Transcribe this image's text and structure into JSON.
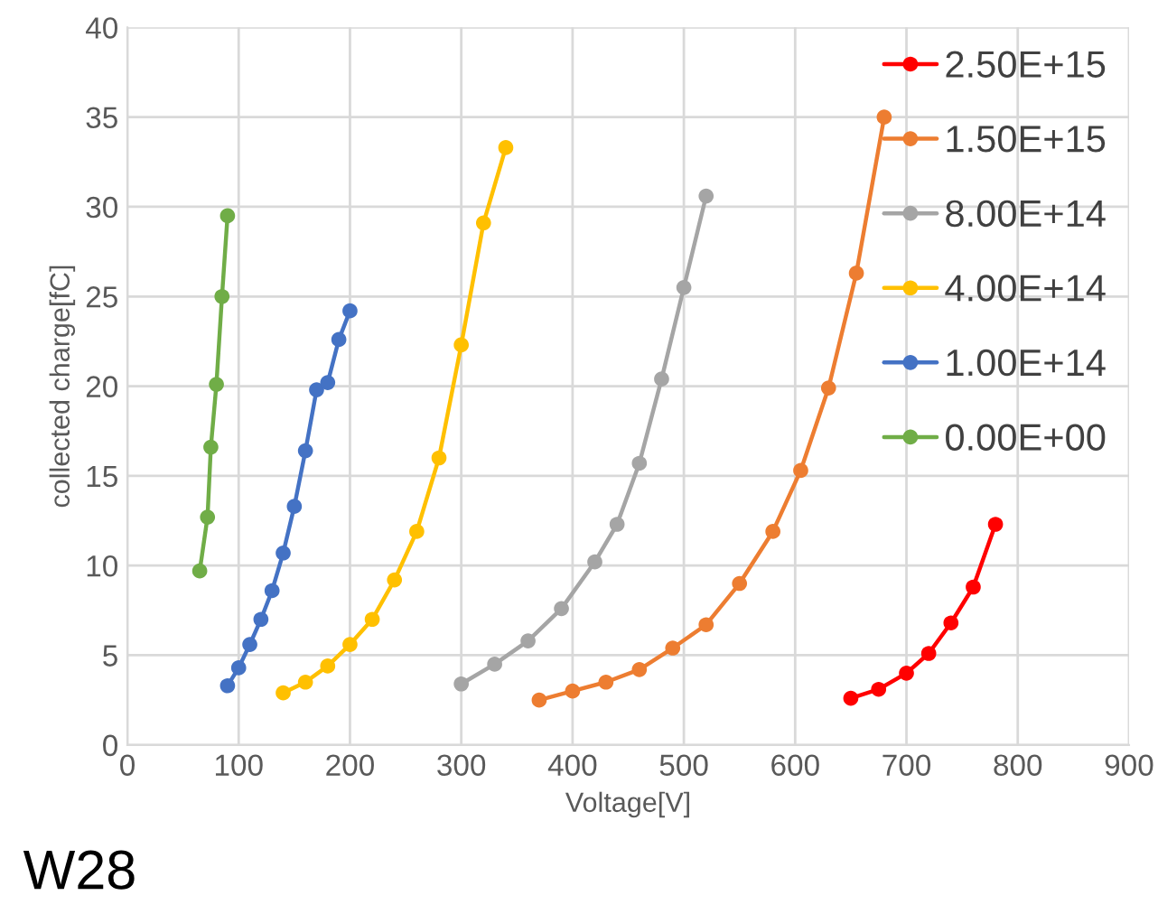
{
  "chart_data": {
    "type": "line",
    "xlabel": "Voltage[V]",
    "ylabel": "collected charge[fC]",
    "annotations": [
      "W28"
    ],
    "xlim": [
      0,
      900
    ],
    "xticks": [
      0,
      100,
      200,
      300,
      400,
      500,
      600,
      700,
      800,
      900
    ],
    "ylim": [
      0,
      40
    ],
    "yticks": [
      0,
      5,
      10,
      15,
      20,
      25,
      30,
      35,
      40
    ],
    "grid": true,
    "legend": "top right",
    "marker": "circle",
    "line_style": "solid",
    "series": [
      {
        "name": "2.50E+15",
        "color": "#ff0000",
        "x": [
          650,
          675,
          700,
          720,
          740,
          760,
          780
        ],
        "values": [
          2.6,
          3.1,
          4.0,
          5.1,
          6.8,
          8.8,
          12.3
        ]
      },
      {
        "name": "1.50E+15",
        "color": "#ed7d31",
        "x": [
          370,
          400,
          430,
          460,
          490,
          520,
          550,
          580,
          605,
          630,
          655,
          680
        ],
        "values": [
          2.5,
          3.0,
          3.5,
          4.2,
          5.4,
          6.7,
          9.0,
          11.9,
          15.3,
          19.9,
          26.3,
          35.0
        ]
      },
      {
        "name": "8.00E+14",
        "color": "#a5a5a5",
        "x": [
          300,
          330,
          360,
          390,
          420,
          440,
          460,
          480,
          500,
          520
        ],
        "values": [
          3.4,
          4.5,
          5.8,
          7.6,
          10.2,
          12.3,
          15.7,
          20.4,
          25.5,
          30.6
        ]
      },
      {
        "name": "4.00E+14",
        "color": "#ffc000",
        "x": [
          140,
          160,
          180,
          200,
          220,
          240,
          260,
          280,
          300,
          320,
          340
        ],
        "values": [
          2.9,
          3.5,
          4.4,
          5.6,
          7.0,
          9.2,
          11.9,
          16.0,
          22.3,
          29.1,
          33.3
        ]
      },
      {
        "name": "1.00E+14",
        "color": "#4472c4",
        "x": [
          90,
          100,
          110,
          120,
          130,
          140,
          150,
          160,
          170,
          180,
          190,
          200
        ],
        "values": [
          3.3,
          4.3,
          5.6,
          7.0,
          8.6,
          10.7,
          13.3,
          16.4,
          19.8,
          20.2,
          22.6,
          24.2
        ]
      },
      {
        "name": "0.00E+00",
        "color": "#70ad47",
        "x": [
          65,
          72,
          75,
          80,
          85,
          90
        ],
        "values": [
          9.7,
          12.7,
          16.6,
          20.1,
          25.0,
          29.5
        ]
      }
    ]
  }
}
